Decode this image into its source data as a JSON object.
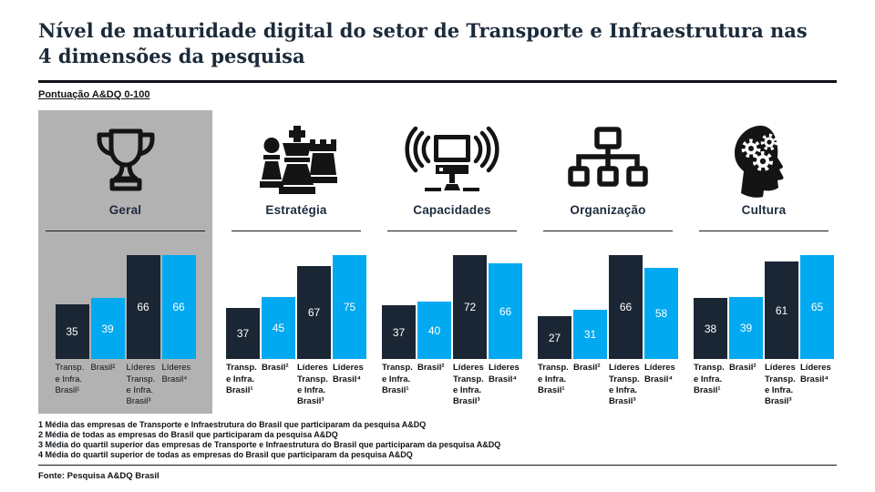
{
  "page": {
    "title": "Nível de maturidade digital do setor de Transporte e Infraestrutura nas 4 dimensões da pesquisa",
    "score_scale_label": "Pontuação A&DQ 0-100",
    "source": "Fonte: Pesquisa A&DQ Brasil"
  },
  "colors": {
    "dark_bar": "#1b2634",
    "light_bar": "#00a9f0",
    "highlight_panel": "#b2b2b2",
    "title_navy": "#1c2b3a",
    "icon_black": "#141414"
  },
  "footnotes": [
    "1 Média das empresas de Transporte e Infraestrutura do Brasil que participaram da pesquisa A&DQ",
    "2 Média de todas as empresas do Brasil que participaram da pesquisa A&DQ",
    "3 Média do quartil superior das empresas de Transporte e Infraestrutura do Brasil que participaram da pesquisa A&DQ",
    "4 Média do quartil superior de todas as empresas do Brasil que participaram da pesquisa A&DQ"
  ],
  "chart_data": {
    "type": "bar",
    "title": "Nível de maturidade digital do setor de Transporte e Infraestrutura nas 4 dimensões da pesquisa",
    "ylabel": "Pontuação A&DQ 0-100",
    "ylim": [
      0,
      100
    ],
    "grid": false,
    "legend_position": "none",
    "value_labels": "inside-center-white",
    "normalized_per_group": true,
    "bar_labels": [
      "Transp. e Infra. Brasil¹",
      "Brasil²",
      "Líderes Transp. e Infra. Brasil³",
      "Líderes Brasil⁴"
    ],
    "bar_colors": [
      "#1b2634",
      "#00a9f0",
      "#1b2634",
      "#00a9f0"
    ],
    "groups": [
      {
        "key": "geral",
        "label": "Geral",
        "icon": "trophy-icon",
        "highlighted": true,
        "values": [
          35,
          39,
          66,
          66
        ]
      },
      {
        "key": "estrategia",
        "label": "Estratégia",
        "icon": "chess-pieces-icon",
        "highlighted": false,
        "values": [
          37,
          45,
          67,
          75
        ]
      },
      {
        "key": "capacidades",
        "label": "Capacidades",
        "icon": "computer-signal-icon",
        "highlighted": false,
        "values": [
          37,
          40,
          72,
          66
        ]
      },
      {
        "key": "organizacao",
        "label": "Organização",
        "icon": "org-chart-icon",
        "highlighted": false,
        "values": [
          27,
          31,
          66,
          58
        ]
      },
      {
        "key": "cultura",
        "label": "Cultura",
        "icon": "head-gears-icon",
        "highlighted": false,
        "values": [
          38,
          39,
          61,
          65
        ]
      }
    ]
  }
}
